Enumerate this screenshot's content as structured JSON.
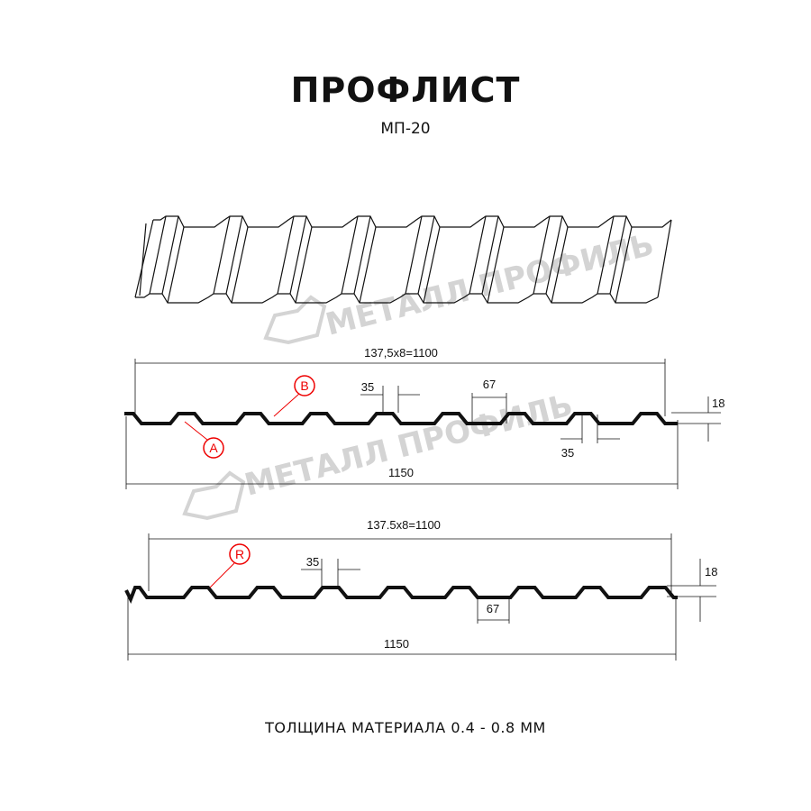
{
  "title": "ПРОФЛИСТ",
  "subtitle": "МП-20",
  "footer": "ТОЛЩИНА МАТЕРИАЛА 0.4 - 0.8 ММ",
  "watermark": "МЕТАЛЛ ПРОФИЛЬ",
  "colors": {
    "profile": "#111111",
    "marker": "#e00000",
    "watermark": "#d4d4d4"
  },
  "profile_a": {
    "span_label": "137,5x8=1100",
    "total_label": "1150",
    "top_width_label": "35",
    "bottom_width_label": "67",
    "bottom_top_width_label": "35",
    "height_label": "18",
    "markers": [
      "A",
      "B"
    ]
  },
  "profile_r": {
    "span_label": "137.5x8=1100",
    "total_label": "1150",
    "top_width_label": "35",
    "bottom_width_label": "67",
    "height_label": "18",
    "markers": [
      "R"
    ]
  }
}
